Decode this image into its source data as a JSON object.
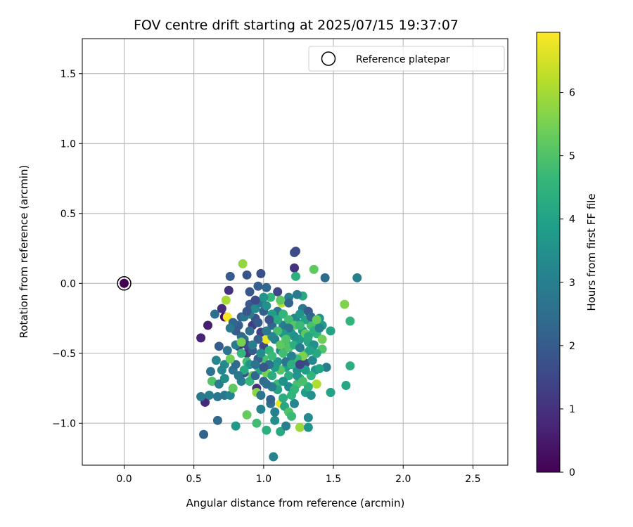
{
  "chart_data": {
    "type": "scatter",
    "title": "FOV centre drift starting at 2025/07/15 19:37:07",
    "xlabel": "Angular distance from reference (arcmin)",
    "ylabel": "Rotation from reference (arcmin)",
    "xlim": [
      -0.3,
      2.75
    ],
    "ylim": [
      -1.3,
      1.75
    ],
    "xticks": [
      0.0,
      0.5,
      1.0,
      1.5,
      2.0,
      2.5
    ],
    "xtick_labels": [
      "0.0",
      "0.5",
      "1.0",
      "1.5",
      "2.0",
      "2.5"
    ],
    "yticks": [
      -1.0,
      -0.5,
      0.0,
      0.5,
      1.0,
      1.5
    ],
    "ytick_labels": [
      "−1.0",
      "−0.5",
      "0.0",
      "0.5",
      "1.0",
      "1.5"
    ],
    "grid": true,
    "legend": {
      "placement": "top-right",
      "label": "Reference platepar"
    },
    "reference_point": {
      "x": 0.0,
      "y": 0.0,
      "c": 0.0
    },
    "colorbar": {
      "label": "Hours from first FF file",
      "range": [
        0,
        6.95
      ],
      "ticks": [
        0,
        1,
        2,
        3,
        4,
        5,
        6
      ],
      "tick_labels": [
        "0",
        "1",
        "2",
        "3",
        "4",
        "5",
        "6"
      ],
      "colormap": "viridis",
      "colors": [
        "#440154",
        "#482878",
        "#3e4989",
        "#31688e",
        "#26828e",
        "#1f9e89",
        "#35b779",
        "#6ece58",
        "#b5de2b",
        "#fde725"
      ]
    },
    "points": [
      {
        "x": 0.72,
        "y": -0.24,
        "c": 0.3
      },
      {
        "x": 0.6,
        "y": -0.3,
        "c": 0.6
      },
      {
        "x": 0.55,
        "y": -0.39,
        "c": 0.7
      },
      {
        "x": 0.58,
        "y": -0.85,
        "c": 0.8
      },
      {
        "x": 0.7,
        "y": -0.18,
        "c": 0.9
      },
      {
        "x": 0.75,
        "y": -0.05,
        "c": 1.0
      },
      {
        "x": 0.82,
        "y": -0.45,
        "c": 1.1
      },
      {
        "x": 0.88,
        "y": -0.5,
        "c": 1.2
      },
      {
        "x": 0.92,
        "y": -0.3,
        "c": 1.3
      },
      {
        "x": 0.98,
        "y": -0.35,
        "c": 1.4
      },
      {
        "x": 1.0,
        "y": -0.45,
        "c": 1.5
      },
      {
        "x": 0.95,
        "y": -0.75,
        "c": 1.0
      },
      {
        "x": 0.76,
        "y": 0.05,
        "c": 2.0
      },
      {
        "x": 0.88,
        "y": 0.06,
        "c": 1.8
      },
      {
        "x": 0.98,
        "y": 0.07,
        "c": 1.7
      },
      {
        "x": 0.9,
        "y": -0.06,
        "c": 1.9
      },
      {
        "x": 0.96,
        "y": -0.02,
        "c": 2.1
      },
      {
        "x": 1.02,
        "y": -0.03,
        "c": 2.3
      },
      {
        "x": 1.1,
        "y": -0.06,
        "c": 1.5
      },
      {
        "x": 1.22,
        "y": 0.22,
        "c": 1.9
      },
      {
        "x": 1.23,
        "y": 0.23,
        "c": 1.6
      },
      {
        "x": 1.22,
        "y": 0.11,
        "c": 1.0
      },
      {
        "x": 1.44,
        "y": 0.04,
        "c": 2.4
      },
      {
        "x": 1.67,
        "y": 0.04,
        "c": 3.0
      },
      {
        "x": 0.65,
        "y": -0.22,
        "c": 2.5
      },
      {
        "x": 0.68,
        "y": -0.45,
        "c": 2.0
      },
      {
        "x": 0.62,
        "y": -0.63,
        "c": 2.6
      },
      {
        "x": 0.55,
        "y": -0.81,
        "c": 2.8
      },
      {
        "x": 0.61,
        "y": -0.8,
        "c": 2.9
      },
      {
        "x": 0.57,
        "y": -1.08,
        "c": 2.2
      },
      {
        "x": 0.67,
        "y": -0.98,
        "c": 2.4
      },
      {
        "x": 0.67,
        "y": -0.81,
        "c": 2.7
      },
      {
        "x": 0.72,
        "y": -0.8,
        "c": 2.8
      },
      {
        "x": 0.76,
        "y": -0.8,
        "c": 3.1
      },
      {
        "x": 0.66,
        "y": -0.55,
        "c": 3.2
      },
      {
        "x": 0.72,
        "y": -0.58,
        "c": 3.3
      },
      {
        "x": 0.78,
        "y": -0.62,
        "c": 2.6
      },
      {
        "x": 0.8,
        "y": -0.44,
        "c": 2.9
      },
      {
        "x": 0.84,
        "y": -0.24,
        "c": 2.2
      },
      {
        "x": 0.86,
        "y": -0.4,
        "c": 2.5
      },
      {
        "x": 0.9,
        "y": -0.15,
        "c": 2.0
      },
      {
        "x": 0.94,
        "y": -0.25,
        "c": 1.8
      },
      {
        "x": 1.0,
        "y": -0.2,
        "c": 2.1
      },
      {
        "x": 1.06,
        "y": -0.3,
        "c": 2.3
      },
      {
        "x": 1.1,
        "y": -0.2,
        "c": 2.7
      },
      {
        "x": 1.14,
        "y": -0.3,
        "c": 2.9
      },
      {
        "x": 1.18,
        "y": -0.1,
        "c": 3.0
      },
      {
        "x": 1.22,
        "y": -0.25,
        "c": 3.2
      },
      {
        "x": 1.28,
        "y": -0.18,
        "c": 2.8
      },
      {
        "x": 1.32,
        "y": -0.2,
        "c": 2.0
      },
      {
        "x": 1.36,
        "y": -0.28,
        "c": 3.4
      },
      {
        "x": 1.4,
        "y": -0.25,
        "c": 3.6
      },
      {
        "x": 1.42,
        "y": -0.3,
        "c": 3.8
      },
      {
        "x": 1.45,
        "y": -0.6,
        "c": 3.0
      },
      {
        "x": 1.48,
        "y": -0.34,
        "c": 4.0
      },
      {
        "x": 1.58,
        "y": -0.15,
        "c": 5.6
      },
      {
        "x": 1.62,
        "y": -0.27,
        "c": 4.5
      },
      {
        "x": 1.62,
        "y": -0.59,
        "c": 4.3
      },
      {
        "x": 1.59,
        "y": -0.73,
        "c": 4.1
      },
      {
        "x": 1.48,
        "y": -0.78,
        "c": 4.0
      },
      {
        "x": 1.36,
        "y": 0.1,
        "c": 5.2
      },
      {
        "x": 1.23,
        "y": 0.05,
        "c": 4.4
      },
      {
        "x": 1.28,
        "y": -0.09,
        "c": 4.2
      },
      {
        "x": 1.05,
        "y": -0.1,
        "c": 4.6
      },
      {
        "x": 0.85,
        "y": 0.14,
        "c": 5.8
      },
      {
        "x": 0.73,
        "y": -0.12,
        "c": 6.0
      },
      {
        "x": 0.74,
        "y": -0.24,
        "c": 6.9
      },
      {
        "x": 1.02,
        "y": -0.4,
        "c": 6.8
      },
      {
        "x": 1.12,
        "y": -0.86,
        "c": 6.7
      },
      {
        "x": 1.13,
        "y": -0.14,
        "c": 6.2
      },
      {
        "x": 1.38,
        "y": -0.72,
        "c": 6.1
      },
      {
        "x": 1.26,
        "y": -1.03,
        "c": 5.9
      },
      {
        "x": 0.95,
        "y": -0.78,
        "c": 5.7
      },
      {
        "x": 0.88,
        "y": -0.94,
        "c": 5.3
      },
      {
        "x": 0.95,
        "y": -1.0,
        "c": 4.8
      },
      {
        "x": 1.02,
        "y": -1.05,
        "c": 4.4
      },
      {
        "x": 1.08,
        "y": -0.98,
        "c": 3.4
      },
      {
        "x": 1.12,
        "y": -1.06,
        "c": 4.2
      },
      {
        "x": 1.16,
        "y": -1.02,
        "c": 3.0
      },
      {
        "x": 1.32,
        "y": -1.03,
        "c": 3.6
      },
      {
        "x": 1.32,
        "y": -0.96,
        "c": 3.3
      },
      {
        "x": 1.07,
        "y": -1.24,
        "c": 3.1
      },
      {
        "x": 0.8,
        "y": -1.02,
        "c": 3.7
      },
      {
        "x": 0.98,
        "y": -0.9,
        "c": 3.1
      },
      {
        "x": 1.05,
        "y": -0.86,
        "c": 2.6
      },
      {
        "x": 1.08,
        "y": -0.92,
        "c": 3.0
      },
      {
        "x": 1.15,
        "y": -0.88,
        "c": 4.1
      },
      {
        "x": 1.22,
        "y": -0.86,
        "c": 3.2
      },
      {
        "x": 1.2,
        "y": -0.8,
        "c": 4.5
      },
      {
        "x": 1.3,
        "y": -0.78,
        "c": 3.8
      },
      {
        "x": 1.34,
        "y": -0.8,
        "c": 3.5
      },
      {
        "x": 1.05,
        "y": -0.83,
        "c": 2.2
      },
      {
        "x": 1.0,
        "y": -0.7,
        "c": 2.4
      },
      {
        "x": 1.1,
        "y": -0.72,
        "c": 4.7
      },
      {
        "x": 1.16,
        "y": -0.6,
        "c": 3.9
      },
      {
        "x": 1.18,
        "y": -0.66,
        "c": 4.3
      },
      {
        "x": 1.24,
        "y": -0.62,
        "c": 3.5
      },
      {
        "x": 1.28,
        "y": -0.56,
        "c": 2.0
      },
      {
        "x": 1.3,
        "y": -0.57,
        "c": 1.6
      },
      {
        "x": 1.24,
        "y": -0.72,
        "c": 4.9
      },
      {
        "x": 1.26,
        "y": -0.68,
        "c": 4.6
      },
      {
        "x": 1.32,
        "y": -0.74,
        "c": 4.4
      },
      {
        "x": 1.37,
        "y": -0.62,
        "c": 3.6
      },
      {
        "x": 1.4,
        "y": -0.61,
        "c": 4.0
      },
      {
        "x": 1.35,
        "y": -0.55,
        "c": 3.2
      },
      {
        "x": 1.3,
        "y": -0.5,
        "c": 4.8
      },
      {
        "x": 1.32,
        "y": -0.42,
        "c": 4.1
      },
      {
        "x": 1.28,
        "y": -0.34,
        "c": 3.7
      },
      {
        "x": 1.24,
        "y": -0.28,
        "c": 3.3
      },
      {
        "x": 1.2,
        "y": -0.36,
        "c": 3.9
      },
      {
        "x": 1.16,
        "y": -0.42,
        "c": 4.2
      },
      {
        "x": 1.12,
        "y": -0.48,
        "c": 3.4
      },
      {
        "x": 1.08,
        "y": -0.4,
        "c": 3.0
      },
      {
        "x": 1.04,
        "y": -0.48,
        "c": 4.5
      },
      {
        "x": 1.0,
        "y": -0.54,
        "c": 4.9
      },
      {
        "x": 0.96,
        "y": -0.6,
        "c": 5.1
      },
      {
        "x": 0.92,
        "y": -0.66,
        "c": 5.3
      },
      {
        "x": 0.88,
        "y": -0.56,
        "c": 4.8
      },
      {
        "x": 0.84,
        "y": -0.5,
        "c": 4.6
      },
      {
        "x": 0.8,
        "y": -0.58,
        "c": 2.4
      },
      {
        "x": 0.76,
        "y": -0.54,
        "c": 5.4
      },
      {
        "x": 0.74,
        "y": -0.48,
        "c": 2.6
      },
      {
        "x": 0.7,
        "y": -0.62,
        "c": 3.2
      },
      {
        "x": 0.63,
        "y": -0.7,
        "c": 5.0
      },
      {
        "x": 0.68,
        "y": -0.72,
        "c": 2.9
      },
      {
        "x": 0.72,
        "y": -0.68,
        "c": 3.4
      },
      {
        "x": 0.78,
        "y": -0.75,
        "c": 5.2
      },
      {
        "x": 0.84,
        "y": -0.7,
        "c": 3.0
      },
      {
        "x": 0.86,
        "y": -0.64,
        "c": 1.7
      },
      {
        "x": 0.9,
        "y": -0.7,
        "c": 4.6
      },
      {
        "x": 0.94,
        "y": -0.66,
        "c": 2.3
      },
      {
        "x": 0.98,
        "y": -0.62,
        "c": 4.0
      },
      {
        "x": 1.02,
        "y": -0.64,
        "c": 5.5
      },
      {
        "x": 1.06,
        "y": -0.66,
        "c": 4.3
      },
      {
        "x": 1.1,
        "y": -0.56,
        "c": 3.6
      },
      {
        "x": 1.14,
        "y": -0.5,
        "c": 4.8
      },
      {
        "x": 1.18,
        "y": -0.46,
        "c": 5.0
      },
      {
        "x": 1.22,
        "y": -0.44,
        "c": 4.4
      },
      {
        "x": 1.26,
        "y": -0.4,
        "c": 3.8
      },
      {
        "x": 1.3,
        "y": -0.36,
        "c": 5.2
      },
      {
        "x": 1.34,
        "y": -0.3,
        "c": 4.9
      },
      {
        "x": 1.38,
        "y": -0.36,
        "c": 4.6
      },
      {
        "x": 1.42,
        "y": -0.4,
        "c": 5.4
      },
      {
        "x": 1.42,
        "y": -0.47,
        "c": 5.0
      },
      {
        "x": 1.38,
        "y": -0.5,
        "c": 4.2
      },
      {
        "x": 1.36,
        "y": -0.44,
        "c": 3.5
      },
      {
        "x": 1.33,
        "y": -0.48,
        "c": 4.0
      },
      {
        "x": 1.28,
        "y": -0.52,
        "c": 5.6
      },
      {
        "x": 1.24,
        "y": -0.54,
        "c": 4.7
      },
      {
        "x": 1.2,
        "y": -0.52,
        "c": 3.1
      },
      {
        "x": 1.16,
        "y": -0.56,
        "c": 2.7
      },
      {
        "x": 1.12,
        "y": -0.62,
        "c": 5.1
      },
      {
        "x": 1.08,
        "y": -0.6,
        "c": 3.8
      },
      {
        "x": 1.04,
        "y": -0.58,
        "c": 2.5
      },
      {
        "x": 1.0,
        "y": -0.6,
        "c": 1.9
      },
      {
        "x": 0.96,
        "y": -0.54,
        "c": 2.2
      },
      {
        "x": 0.92,
        "y": -0.48,
        "c": 2.0
      },
      {
        "x": 0.88,
        "y": -0.44,
        "c": 1.6
      },
      {
        "x": 0.84,
        "y": -0.38,
        "c": 2.4
      },
      {
        "x": 0.82,
        "y": -0.3,
        "c": 2.1
      },
      {
        "x": 0.86,
        "y": -0.24,
        "c": 2.6
      },
      {
        "x": 0.9,
        "y": -0.22,
        "c": 3.0
      },
      {
        "x": 0.94,
        "y": -0.18,
        "c": 3.3
      },
      {
        "x": 0.98,
        "y": -0.14,
        "c": 2.7
      },
      {
        "x": 1.02,
        "y": -0.16,
        "c": 3.5
      },
      {
        "x": 1.06,
        "y": -0.22,
        "c": 3.9
      },
      {
        "x": 1.1,
        "y": -0.26,
        "c": 4.2
      },
      {
        "x": 1.14,
        "y": -0.22,
        "c": 4.5
      },
      {
        "x": 1.18,
        "y": -0.26,
        "c": 4.8
      },
      {
        "x": 1.22,
        "y": -0.3,
        "c": 5.1
      },
      {
        "x": 1.26,
        "y": -0.22,
        "c": 3.6
      },
      {
        "x": 1.3,
        "y": -0.26,
        "c": 4.0
      },
      {
        "x": 1.34,
        "y": -0.24,
        "c": 2.3
      },
      {
        "x": 1.38,
        "y": -0.26,
        "c": 5.3
      },
      {
        "x": 1.36,
        "y": -0.34,
        "c": 4.4
      },
      {
        "x": 1.4,
        "y": -0.32,
        "c": 3.1
      },
      {
        "x": 1.26,
        "y": -0.46,
        "c": 2.9
      },
      {
        "x": 1.22,
        "y": -0.38,
        "c": 3.5
      },
      {
        "x": 1.18,
        "y": -0.32,
        "c": 2.6
      },
      {
        "x": 1.14,
        "y": -0.36,
        "c": 3.7
      },
      {
        "x": 1.1,
        "y": -0.34,
        "c": 4.9
      },
      {
        "x": 1.06,
        "y": -0.38,
        "c": 3.2
      },
      {
        "x": 1.02,
        "y": -0.34,
        "c": 2.8
      },
      {
        "x": 0.96,
        "y": -0.4,
        "c": 2.1
      },
      {
        "x": 0.92,
        "y": -0.44,
        "c": 3.0
      },
      {
        "x": 0.9,
        "y": -0.58,
        "c": 3.6
      },
      {
        "x": 0.86,
        "y": -0.62,
        "c": 4.2
      },
      {
        "x": 0.82,
        "y": -0.66,
        "c": 2.8
      },
      {
        "x": 0.94,
        "y": -0.58,
        "c": 2.6
      },
      {
        "x": 0.98,
        "y": -0.5,
        "c": 3.4
      },
      {
        "x": 1.06,
        "y": -0.52,
        "c": 4.7
      },
      {
        "x": 1.12,
        "y": -0.44,
        "c": 5.2
      },
      {
        "x": 1.16,
        "y": -0.4,
        "c": 5.0
      },
      {
        "x": 1.2,
        "y": -0.58,
        "c": 4.4
      },
      {
        "x": 1.24,
        "y": -0.66,
        "c": 3.6
      },
      {
        "x": 1.28,
        "y": -0.7,
        "c": 4.9
      },
      {
        "x": 1.34,
        "y": -0.66,
        "c": 4.5
      },
      {
        "x": 1.3,
        "y": -0.62,
        "c": 3.9
      },
      {
        "x": 1.26,
        "y": -0.58,
        "c": 1.4
      },
      {
        "x": 1.14,
        "y": -0.7,
        "c": 3.5
      },
      {
        "x": 1.1,
        "y": -0.76,
        "c": 4.0
      },
      {
        "x": 1.06,
        "y": -0.74,
        "c": 2.9
      },
      {
        "x": 1.02,
        "y": -0.72,
        "c": 2.5
      },
      {
        "x": 0.98,
        "y": -0.8,
        "c": 2.7
      },
      {
        "x": 1.18,
        "y": -0.74,
        "c": 3.3
      },
      {
        "x": 1.22,
        "y": -0.76,
        "c": 4.6
      },
      {
        "x": 1.14,
        "y": -0.82,
        "c": 4.3
      },
      {
        "x": 1.18,
        "y": -0.92,
        "c": 5.0
      },
      {
        "x": 1.2,
        "y": -0.95,
        "c": 4.7
      },
      {
        "x": 0.84,
        "y": -0.42,
        "c": 5.5
      },
      {
        "x": 0.8,
        "y": -0.34,
        "c": 2.0
      },
      {
        "x": 0.78,
        "y": -0.28,
        "c": 2.3
      },
      {
        "x": 0.76,
        "y": -0.32,
        "c": 2.8
      },
      {
        "x": 0.9,
        "y": -0.34,
        "c": 2.5
      },
      {
        "x": 0.96,
        "y": -0.28,
        "c": 2.0
      },
      {
        "x": 1.04,
        "y": -0.26,
        "c": 1.8
      },
      {
        "x": 1.18,
        "y": -0.14,
        "c": 2.2
      },
      {
        "x": 1.24,
        "y": -0.08,
        "c": 2.9
      },
      {
        "x": 1.12,
        "y": -0.12,
        "c": 5.2
      },
      {
        "x": 1.0,
        "y": -0.1,
        "c": 3.6
      },
      {
        "x": 0.94,
        "y": -0.12,
        "c": 1.6
      },
      {
        "x": 0.88,
        "y": -0.2,
        "c": 1.9
      },
      {
        "x": 1.26,
        "y": -0.3,
        "c": 4.7
      },
      {
        "x": 1.32,
        "y": -0.38,
        "c": 4.2
      }
    ]
  }
}
